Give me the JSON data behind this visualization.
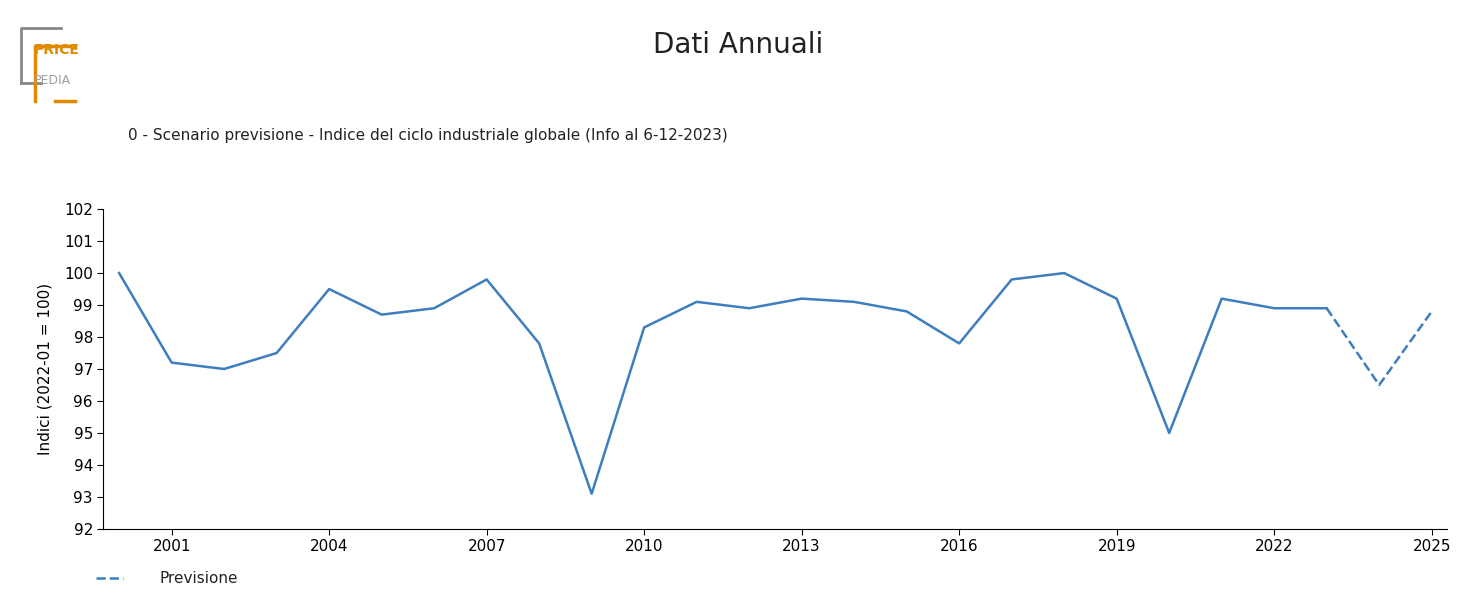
{
  "title": "Dati Annuali",
  "ylabel": "Indici (2022-01 = 100)",
  "legend_series": "0 - Scenario previsione - Indice del ciclo industriale globale (Info al 6-12-2023)",
  "legend_dashed": "Previsione",
  "line_color": "#3d7ebf",
  "ylim": [
    92,
    102
  ],
  "yticks": [
    92,
    93,
    94,
    95,
    96,
    97,
    98,
    99,
    100,
    101,
    102
  ],
  "solid_data": {
    "years": [
      2000,
      2001,
      2002,
      2003,
      2004,
      2005,
      2006,
      2007,
      2008,
      2009,
      2010,
      2011,
      2012,
      2013,
      2014,
      2015,
      2016,
      2017,
      2018,
      2019,
      2020,
      2021,
      2022,
      2023
    ],
    "values": [
      100.0,
      97.2,
      97.0,
      97.5,
      99.5,
      98.7,
      98.9,
      99.8,
      97.8,
      93.1,
      98.3,
      99.1,
      98.9,
      99.2,
      99.1,
      98.8,
      97.8,
      99.8,
      100.0,
      99.2,
      95.0,
      99.2,
      98.9,
      98.9
    ]
  },
  "dashed_data": {
    "years": [
      2023,
      2024,
      2025
    ],
    "values": [
      98.9,
      96.5,
      98.8
    ]
  },
  "background_color": "#ffffff",
  "title_fontsize": 20,
  "label_fontsize": 11,
  "tick_fontsize": 11,
  "xtick_vals": [
    2001,
    2004,
    2007,
    2010,
    2013,
    2016,
    2019,
    2022,
    2025
  ],
  "xlim": [
    1999.7,
    2025.3
  ],
  "logo_price_color": "#e08a00",
  "logo_pedia_color": "#a0a0a0"
}
